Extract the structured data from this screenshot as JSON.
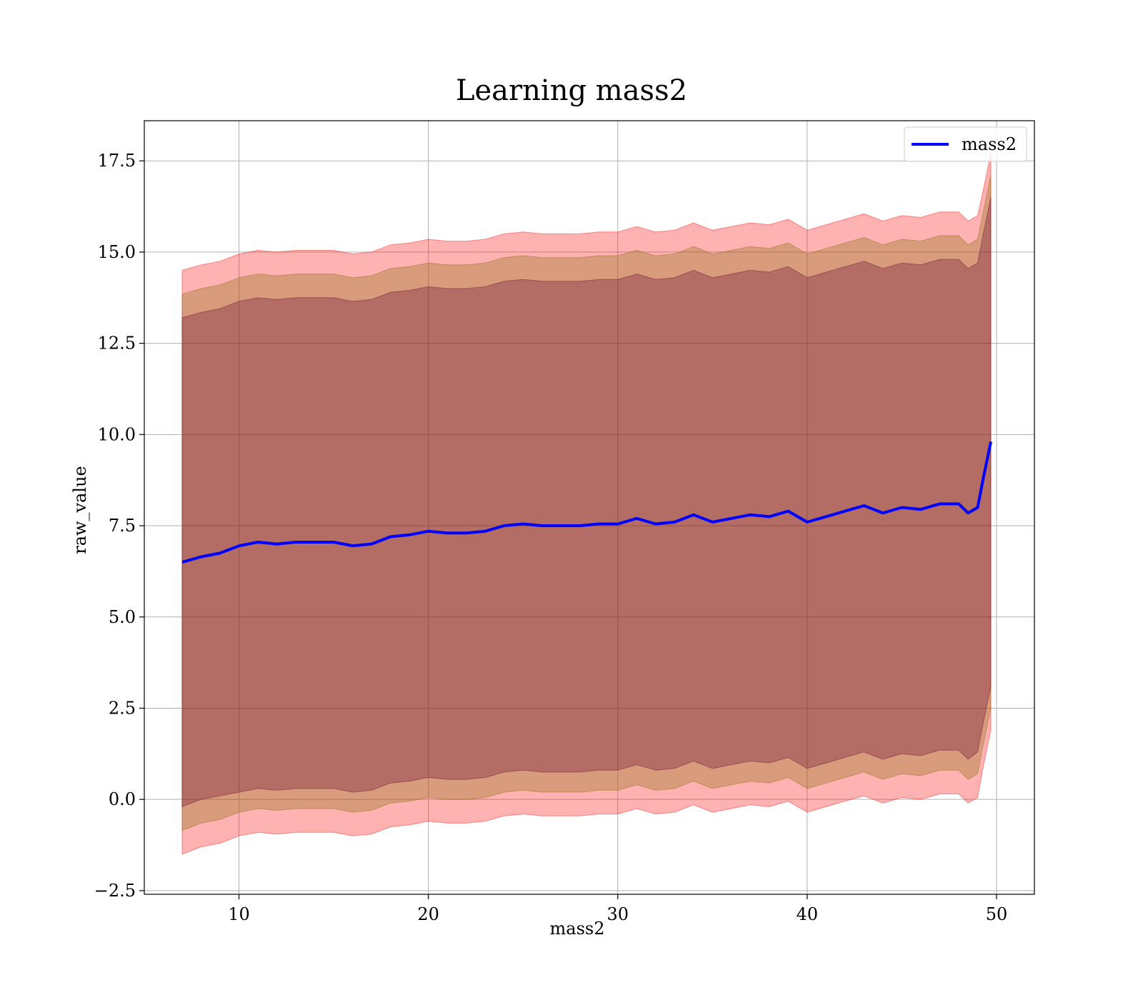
{
  "chart_data": {
    "type": "area",
    "title": "Learning mass2",
    "xlabel": "mass2",
    "ylabel": "raw_value",
    "xlim": [
      5,
      52
    ],
    "ylim": [
      -2.6,
      18.6
    ],
    "xticks": [
      10,
      20,
      30,
      40,
      50
    ],
    "yticks": [
      -2.5,
      0.0,
      2.5,
      5.0,
      7.5,
      10.0,
      12.5,
      15.0,
      17.5
    ],
    "ytick_labels": [
      "−2.5",
      "0.0",
      "2.5",
      "5.0",
      "7.5",
      "10.0",
      "12.5",
      "15.0",
      "17.5"
    ],
    "grid": true,
    "legend": {
      "position": "top-right",
      "entries": [
        "mass2"
      ]
    },
    "colors": {
      "mean_line": "#0000ff",
      "band_outer": "#ff0000",
      "band_middle": "#7f6a00",
      "band_inner": "#600030"
    },
    "x": [
      7.0,
      8.0,
      9.0,
      10.0,
      11.0,
      12.0,
      13.0,
      14.0,
      15.0,
      16.0,
      17.0,
      18.0,
      19.0,
      20.0,
      21.0,
      22.0,
      23.0,
      24.0,
      25.0,
      26.0,
      27.0,
      28.0,
      29.0,
      30.0,
      31.0,
      32.0,
      33.0,
      34.0,
      35.0,
      36.0,
      37.0,
      38.0,
      39.0,
      40.0,
      41.0,
      42.0,
      43.0,
      44.0,
      45.0,
      46.0,
      47.0,
      48.0,
      48.5,
      49.0,
      49.3,
      49.7
    ],
    "series": [
      {
        "name": "mass2",
        "values": [
          6.5,
          6.65,
          6.75,
          6.95,
          7.05,
          7.0,
          7.05,
          7.05,
          7.05,
          6.95,
          7.0,
          7.2,
          7.25,
          7.35,
          7.3,
          7.3,
          7.35,
          7.5,
          7.55,
          7.5,
          7.5,
          7.5,
          7.55,
          7.55,
          7.7,
          7.55,
          7.6,
          7.8,
          7.6,
          7.7,
          7.8,
          7.75,
          7.9,
          7.6,
          7.75,
          7.9,
          8.05,
          7.85,
          8.0,
          7.95,
          8.1,
          8.1,
          7.85,
          8.0,
          8.8,
          9.8
        ]
      }
    ],
    "bands": [
      {
        "sigma": 1,
        "lower": [
          -0.2,
          0.0,
          0.1,
          0.2,
          0.3,
          0.25,
          0.3,
          0.3,
          0.3,
          0.2,
          0.25,
          0.45,
          0.5,
          0.6,
          0.55,
          0.55,
          0.6,
          0.75,
          0.8,
          0.75,
          0.75,
          0.75,
          0.8,
          0.8,
          0.95,
          0.8,
          0.85,
          1.05,
          0.85,
          0.95,
          1.05,
          1.0,
          1.15,
          0.85,
          1.0,
          1.15,
          1.3,
          1.1,
          1.25,
          1.2,
          1.35,
          1.35,
          1.1,
          1.3,
          2.1,
          3.1
        ],
        "upper": [
          13.2,
          13.35,
          13.45,
          13.65,
          13.75,
          13.7,
          13.75,
          13.75,
          13.75,
          13.65,
          13.7,
          13.9,
          13.95,
          14.05,
          14.0,
          14.0,
          14.05,
          14.2,
          14.25,
          14.2,
          14.2,
          14.2,
          14.25,
          14.25,
          14.4,
          14.25,
          14.3,
          14.5,
          14.3,
          14.4,
          14.5,
          14.45,
          14.6,
          14.3,
          14.45,
          14.6,
          14.75,
          14.55,
          14.7,
          14.65,
          14.8,
          14.8,
          14.55,
          14.7,
          15.5,
          16.5
        ]
      },
      {
        "sigma": 2,
        "lower": [
          -0.85,
          -0.65,
          -0.55,
          -0.35,
          -0.25,
          -0.3,
          -0.25,
          -0.25,
          -0.25,
          -0.35,
          -0.3,
          -0.1,
          -0.05,
          0.05,
          0.0,
          0.0,
          0.05,
          0.2,
          0.25,
          0.2,
          0.2,
          0.2,
          0.25,
          0.25,
          0.4,
          0.25,
          0.3,
          0.5,
          0.3,
          0.4,
          0.5,
          0.45,
          0.6,
          0.3,
          0.45,
          0.6,
          0.75,
          0.55,
          0.7,
          0.65,
          0.8,
          0.8,
          0.55,
          0.7,
          1.5,
          2.5
        ],
        "upper": [
          13.85,
          14.0,
          14.1,
          14.3,
          14.4,
          14.35,
          14.4,
          14.4,
          14.4,
          14.3,
          14.35,
          14.55,
          14.6,
          14.7,
          14.65,
          14.65,
          14.7,
          14.85,
          14.9,
          14.85,
          14.85,
          14.85,
          14.9,
          14.9,
          15.05,
          14.9,
          14.95,
          15.15,
          14.95,
          15.05,
          15.15,
          15.1,
          15.25,
          14.95,
          15.1,
          15.25,
          15.4,
          15.2,
          15.35,
          15.3,
          15.45,
          15.45,
          15.2,
          15.35,
          16.1,
          17.1
        ]
      },
      {
        "sigma": 3,
        "lower": [
          -1.5,
          -1.3,
          -1.2,
          -1.0,
          -0.9,
          -0.95,
          -0.9,
          -0.9,
          -0.9,
          -1.0,
          -0.95,
          -0.75,
          -0.7,
          -0.6,
          -0.65,
          -0.65,
          -0.6,
          -0.45,
          -0.4,
          -0.45,
          -0.45,
          -0.45,
          -0.4,
          -0.4,
          -0.25,
          -0.4,
          -0.35,
          -0.15,
          -0.35,
          -0.25,
          -0.15,
          -0.2,
          -0.05,
          -0.35,
          -0.2,
          -0.05,
          0.1,
          -0.1,
          0.05,
          0.0,
          0.15,
          0.15,
          -0.1,
          0.05,
          0.9,
          1.9
        ],
        "upper": [
          14.5,
          14.65,
          14.75,
          14.95,
          15.05,
          15.0,
          15.05,
          15.05,
          15.05,
          14.95,
          15.0,
          15.2,
          15.25,
          15.35,
          15.3,
          15.3,
          15.35,
          15.5,
          15.55,
          15.5,
          15.5,
          15.5,
          15.55,
          15.55,
          15.7,
          15.55,
          15.6,
          15.8,
          15.6,
          15.7,
          15.8,
          15.75,
          15.9,
          15.6,
          15.75,
          15.9,
          16.05,
          15.85,
          16.0,
          15.95,
          16.1,
          16.1,
          15.85,
          16.0,
          16.7,
          17.7
        ]
      }
    ]
  }
}
